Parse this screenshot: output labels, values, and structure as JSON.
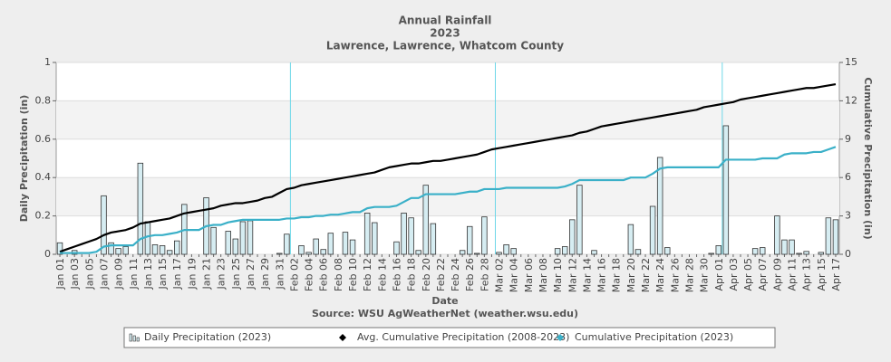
{
  "chart_data": {
    "type": "bar",
    "title": "Annual Rainfall",
    "subtitle": "2023",
    "location": "Lawrence, Lawrence, Whatcom County",
    "x_label": "Date",
    "y_label": "Daily Precipitation (in)",
    "y2_label": "Cumulative Precipitation (in)",
    "source": "Source:  WSU AgWeatherNet (weather.wsu.edu)",
    "categories": [
      "Jan 01",
      null,
      "Jan 03",
      null,
      "Jan 05",
      null,
      "Jan 07",
      null,
      "Jan 09",
      null,
      "Jan 11",
      null,
      "Jan 13",
      null,
      "Jan 15",
      null,
      "Jan 17",
      null,
      "Jan 19",
      null,
      "Jan 21",
      null,
      "Jan 23",
      null,
      "Jan 25",
      null,
      "Jan 27",
      null,
      "Jan 29",
      null,
      "Jan 31",
      null,
      "Feb 02",
      null,
      "Feb 04",
      null,
      "Feb 06",
      null,
      "Feb 08",
      null,
      "Feb 10",
      null,
      "Feb 12",
      null,
      "Feb 14",
      null,
      "Feb 16",
      null,
      "Feb 18",
      null,
      "Feb 20",
      null,
      "Feb 22",
      null,
      "Feb 24",
      null,
      "Feb 26",
      null,
      "Feb 28",
      null,
      "Mar 02",
      null,
      "Mar 04",
      null,
      "Mar 06",
      null,
      "Mar 08",
      null,
      "Mar 10",
      null,
      "Mar 12",
      null,
      "Mar 14",
      null,
      "Mar 16",
      null,
      "Mar 18",
      null,
      "Mar 20",
      null,
      "Mar 22",
      null,
      "Mar 24",
      null,
      "Mar 26",
      null,
      "Mar 28",
      null,
      "Mar 30",
      null,
      "Apr 01",
      null,
      "Apr 03",
      null,
      "Apr 05",
      null,
      "Apr 07",
      null,
      "Apr 09",
      null,
      "Apr 11",
      null,
      "Apr 13",
      null,
      "Apr 15",
      null,
      "Apr 17"
    ],
    "series": [
      {
        "name": "Daily Precipitation (2023)",
        "type": "bar",
        "axis": "y",
        "color": "#d6edf2",
        "values": [
          0.06,
          0,
          0.02,
          0,
          0,
          0,
          0.305,
          0.06,
          0.03,
          0.04,
          0,
          0.475,
          0.17,
          0.05,
          0.045,
          0.02,
          0.07,
          0.26,
          0,
          0,
          0.295,
          0.14,
          0,
          0.12,
          0.08,
          0.17,
          0.175,
          0,
          0,
          0,
          0.005,
          0.105,
          0,
          0.045,
          0.01,
          0.08,
          0.025,
          0.11,
          0,
          0.115,
          0.075,
          0,
          0.215,
          0.165,
          0,
          0,
          0.065,
          0.215,
          0.19,
          0.02,
          0.36,
          0.16,
          0,
          0,
          0,
          0.02,
          0.145,
          0.005,
          0.195,
          0,
          0.01,
          0.05,
          0.03,
          0,
          0,
          0,
          0,
          0,
          0.03,
          0.04,
          0.18,
          0.36,
          0,
          0.02,
          0,
          0,
          0,
          0,
          0.155,
          0.025,
          0,
          0.25,
          0.505,
          0.035,
          0,
          0,
          0,
          0,
          0,
          0.005,
          0.045,
          0.67,
          0,
          0,
          0,
          0.03,
          0.035,
          0,
          0.2,
          0.075,
          0.075,
          0.005,
          0.015,
          0,
          0.01,
          0.19,
          0.18
        ]
      },
      {
        "name": "Avg. Cumulative Precipitation (2008-2023)",
        "type": "line",
        "axis": "y2",
        "color": "#000000",
        "values": [
          0.2,
          0.4,
          0.6,
          0.8,
          1.0,
          1.2,
          1.5,
          1.7,
          1.8,
          1.9,
          2.1,
          2.4,
          2.5,
          2.6,
          2.7,
          2.8,
          3.0,
          3.2,
          3.3,
          3.4,
          3.5,
          3.6,
          3.8,
          3.9,
          4.0,
          4.0,
          4.1,
          4.2,
          4.4,
          4.5,
          4.8,
          5.1,
          5.2,
          5.4,
          5.5,
          5.6,
          5.7,
          5.8,
          5.9,
          6.0,
          6.1,
          6.2,
          6.3,
          6.4,
          6.6,
          6.8,
          6.9,
          7.0,
          7.1,
          7.1,
          7.2,
          7.3,
          7.3,
          7.4,
          7.5,
          7.6,
          7.7,
          7.8,
          8.0,
          8.2,
          8.3,
          8.4,
          8.5,
          8.6,
          8.7,
          8.8,
          8.9,
          9.0,
          9.1,
          9.2,
          9.3,
          9.5,
          9.6,
          9.8,
          10.0,
          10.1,
          10.2,
          10.3,
          10.4,
          10.5,
          10.6,
          10.7,
          10.8,
          10.9,
          11.0,
          11.1,
          11.2,
          11.3,
          11.5,
          11.6,
          11.7,
          11.8,
          11.9,
          12.1,
          12.2,
          12.3,
          12.4,
          12.5,
          12.6,
          12.7,
          12.8,
          12.9,
          13.0,
          13.0,
          13.1,
          13.2,
          13.3
        ]
      },
      {
        "name": "Cumulative Precipitation (2023)",
        "type": "line",
        "axis": "y2",
        "color": "#3ab0c8",
        "values": [
          0.1,
          0.1,
          0.1,
          0.1,
          0.1,
          0.2,
          0.6,
          0.7,
          0.7,
          0.7,
          0.7,
          1.2,
          1.4,
          1.5,
          1.5,
          1.6,
          1.7,
          1.9,
          1.9,
          1.9,
          2.2,
          2.3,
          2.3,
          2.5,
          2.6,
          2.7,
          2.7,
          2.7,
          2.7,
          2.7,
          2.7,
          2.8,
          2.8,
          2.9,
          2.9,
          3.0,
          3.0,
          3.1,
          3.1,
          3.2,
          3.3,
          3.3,
          3.6,
          3.7,
          3.7,
          3.7,
          3.8,
          4.1,
          4.4,
          4.4,
          4.7,
          4.7,
          4.7,
          4.7,
          4.7,
          4.8,
          4.9,
          4.9,
          5.1,
          5.1,
          5.1,
          5.2,
          5.2,
          5.2,
          5.2,
          5.2,
          5.2,
          5.2,
          5.2,
          5.3,
          5.5,
          5.8,
          5.8,
          5.8,
          5.8,
          5.8,
          5.8,
          5.8,
          6.0,
          6.0,
          6.0,
          6.3,
          6.7,
          6.8,
          6.8,
          6.8,
          6.8,
          6.8,
          6.8,
          6.8,
          6.8,
          7.4,
          7.4,
          7.4,
          7.4,
          7.4,
          7.5,
          7.5,
          7.5,
          7.8,
          7.9,
          7.9,
          7.9,
          8.0,
          8.0,
          8.2,
          8.4
        ]
      }
    ],
    "ylim": [
      0,
      1
    ],
    "yticks": [
      0,
      0.2,
      0.4,
      0.6,
      0.8,
      1
    ],
    "y2lim": [
      0,
      15
    ],
    "y2ticks": [
      0,
      3,
      6,
      9,
      12,
      15
    ],
    "grid": true
  }
}
